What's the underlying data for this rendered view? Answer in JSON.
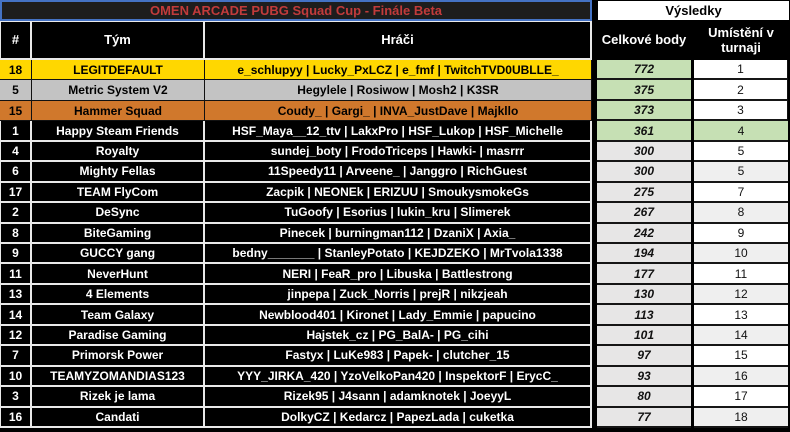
{
  "title": "OMEN ARCADE PUBG Squad Cup - Finále Beta",
  "results_header": "Výsledky",
  "columns": {
    "rank": "#",
    "team": "Tým",
    "players": "Hráči",
    "points": "Celkové body",
    "placement": "Umístění v turnaji"
  },
  "colors": {
    "gold": "#ffd700",
    "silver": "#c3c3c3",
    "bronze": "#d0782c",
    "green": "#c6e0b4",
    "points_gray": "#e7e6e6",
    "alt_row_gray": "#efefef",
    "title_red": "#c23b3b",
    "selection_blue": "#4472c4"
  },
  "rows": [
    {
      "num": "18",
      "team": "LEGITDEFAULT",
      "players": "e_schlupyy | Lucky_PxLCZ | e_fmf | TwitchTVD0UBLLE_",
      "points": "772",
      "place": "1",
      "highlight": "gold"
    },
    {
      "num": "5",
      "team": "Metric System V2",
      "players": "Hegylele | Rosiwow | Mosh2 | K3SR",
      "points": "375",
      "place": "2",
      "highlight": "silver"
    },
    {
      "num": "15",
      "team": "Hammer Squad",
      "players": "Coudy_ | Gargi_ | INVA_JustDave | Majkllo",
      "points": "373",
      "place": "3",
      "highlight": "bronze"
    },
    {
      "num": "1",
      "team": "Happy Steam Friends",
      "players": "HSF_Maya__12_ttv | LakxPro | HSF_Lukop | HSF_Michelle",
      "points": "361",
      "place": "4",
      "highlight": "green"
    },
    {
      "num": "4",
      "team": "Royalty",
      "players": "sundej_boty | FrodoTriceps | Hawki- | masrrr",
      "points": "300",
      "place": "5",
      "highlight": null
    },
    {
      "num": "6",
      "team": "Mighty Fellas",
      "players": "11Speedy11 | Arveene_ | Janggro | RichGuest",
      "points": "300",
      "place": "5",
      "highlight": null
    },
    {
      "num": "17",
      "team": "TEAM FlyCom",
      "players": "Zacpik | NEONEk | ERIZUU | SmoukysmokeGs",
      "points": "275",
      "place": "7",
      "highlight": null
    },
    {
      "num": "2",
      "team": "DeSync",
      "players": "TuGoofy | Esorius | lukin_kru | Slimerek",
      "points": "267",
      "place": "8",
      "highlight": null
    },
    {
      "num": "8",
      "team": "BiteGaming",
      "players": "Pinecek | burningman112 | DzaniX | Axia_",
      "points": "242",
      "place": "9",
      "highlight": null
    },
    {
      "num": "9",
      "team": "GUCCY gang",
      "players": "bedny_______ | StanleyPotato | KEJDZEKO | MrTvola1338",
      "points": "194",
      "place": "10",
      "highlight": null
    },
    {
      "num": "11",
      "team": "NeverHunt",
      "players": "NERI | FeaR_pro | Libuska | Battlestrong",
      "points": "177",
      "place": "11",
      "highlight": null
    },
    {
      "num": "13",
      "team": "4 Elements",
      "players": "jinpepa | Zuck_Norris | prejR | nikzjeah",
      "points": "130",
      "place": "12",
      "highlight": null
    },
    {
      "num": "14",
      "team": "Team Galaxy",
      "players": "Newblood401 | Kironet | Lady_Emmie | papucino",
      "points": "113",
      "place": "13",
      "highlight": null
    },
    {
      "num": "12",
      "team": "Paradise Gaming",
      "players": "Hajstek_cz | PG_BalA- | PG_cihi",
      "points": "101",
      "place": "14",
      "highlight": null
    },
    {
      "num": "7",
      "team": "Primorsk Power",
      "players": "Fastyx | LuKe983 | Papek- | clutcher_15",
      "points": "97",
      "place": "15",
      "highlight": null
    },
    {
      "num": "10",
      "team": "TEAMYZOMANDIAS123",
      "players": "YYY_JIRKA_420 | YzoVelkoPan420 | InspektorF | ErycC_",
      "points": "93",
      "place": "16",
      "highlight": null
    },
    {
      "num": "3",
      "team": "Rizek je lama",
      "players": "Rizek95 | J4sann | adamknotek | JoeyyL",
      "points": "80",
      "place": "17",
      "highlight": null
    },
    {
      "num": "16",
      "team": "Candati",
      "players": "DolkyCZ | Kedarcz | PapezLada | cuketka",
      "points": "77",
      "place": "18",
      "highlight": null
    }
  ]
}
